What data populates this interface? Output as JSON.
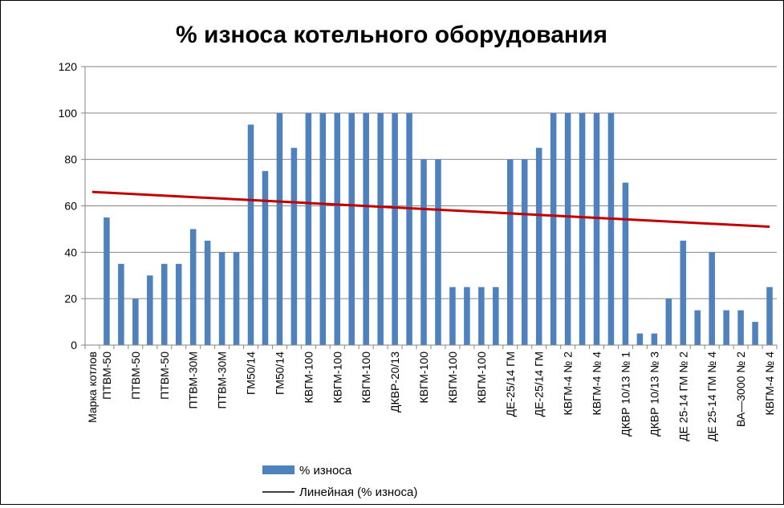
{
  "chart_data": {
    "type": "bar",
    "title": "% износа котельного оборудования",
    "xlabel": "",
    "ylabel": "",
    "ylim": [
      0,
      120
    ],
    "yticks": [
      0,
      20,
      40,
      60,
      80,
      100,
      120
    ],
    "grid": true,
    "legend_position": "bottom",
    "categories": [
      "Марка котлов",
      "ПТВМ-50",
      "",
      "ПТВМ-50",
      "",
      "ПТВМ-50",
      "",
      "ПТВМ-30М",
      "",
      "ПТВМ-30М",
      "",
      "ГМ50/14",
      "",
      "ГМ50/14",
      "",
      "КВГМ-100",
      "",
      "КВГМ-100",
      "",
      "КВГМ-100",
      "",
      "ДКВР-20/13",
      "",
      "КВГМ-100",
      "",
      "КВГМ-100",
      "",
      "КВГМ-100",
      "",
      "ДЕ-25/14 ГМ",
      "",
      "ДЕ-25/14 ГМ",
      "",
      "КВГМ-4 № 2",
      "",
      "КВГМ-4 № 4",
      "",
      "ДКВР 10/13 № 1",
      "",
      "ДКВР 10/13 № 3",
      "",
      "ДЕ 25-14 ГМ № 2",
      "",
      "ДЕ 25-14 ГМ № 4",
      "",
      "ВА—3000 № 2",
      "",
      "КВГМ-4   № 4"
    ],
    "series": [
      {
        "name": "% износа",
        "color": "#4F81BD",
        "values": [
          null,
          55,
          35,
          20,
          30,
          35,
          35,
          50,
          45,
          40,
          40,
          95,
          75,
          100,
          85,
          100,
          100,
          100,
          100,
          100,
          100,
          100,
          100,
          80,
          80,
          25,
          25,
          25,
          25,
          80,
          80,
          85,
          100,
          100,
          100,
          100,
          100,
          70,
          5,
          5,
          20,
          45,
          15,
          40,
          15,
          15,
          10,
          25
        ]
      }
    ],
    "trendline": {
      "name": "Линейная (% износа)",
      "color": "#C00000",
      "start_value": 66,
      "end_value": 51
    }
  }
}
